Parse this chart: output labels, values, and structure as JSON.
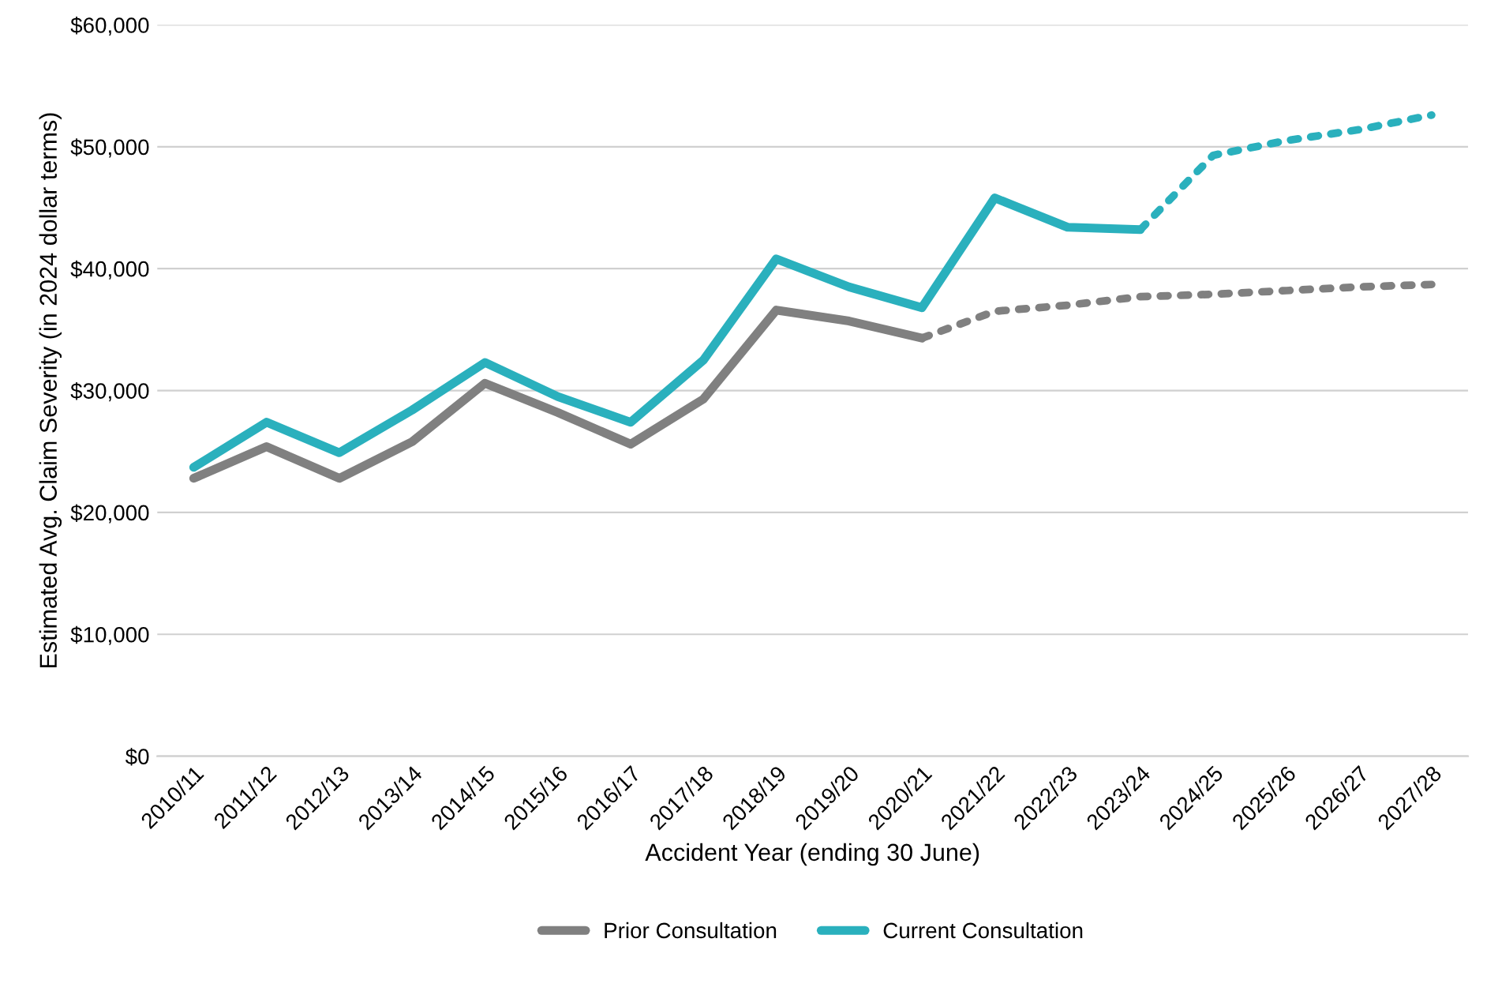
{
  "chart_data": {
    "type": "line",
    "xlabel": "Accident Year (ending 30 June)",
    "ylabel": "Estimated Avg. Claim Severity (in 2024 dollar terms)",
    "categories": [
      "2010/11",
      "2011/12",
      "2012/13",
      "2013/14",
      "2014/15",
      "2015/16",
      "2016/17",
      "2017/18",
      "2018/19",
      "2019/20",
      "2020/21",
      "2021/22",
      "2022/23",
      "2023/24",
      "2024/25",
      "2025/26",
      "2026/27",
      "2027/28"
    ],
    "series": [
      {
        "name": "Prior Consultation",
        "color": "#808080",
        "line_style": "solid",
        "values": [
          22800,
          25400,
          22800,
          25800,
          30600,
          28200,
          25600,
          29300,
          36600,
          35700,
          34300,
          null,
          null,
          null,
          null,
          null,
          null,
          null
        ]
      },
      {
        "color": "#808080",
        "line_style": "dotted",
        "values": [
          null,
          null,
          null,
          null,
          null,
          null,
          null,
          null,
          null,
          null,
          34300,
          36500,
          37000,
          37700,
          37900,
          38200,
          38500,
          38700
        ]
      },
      {
        "name": "Current Consultation",
        "color": "#2ab0bd",
        "line_style": "solid",
        "values": [
          23700,
          27400,
          24900,
          28400,
          32300,
          29500,
          27400,
          32500,
          40800,
          38500,
          36800,
          45800,
          43400,
          43200,
          null,
          null,
          null,
          null
        ]
      },
      {
        "color": "#2ab0bd",
        "line_style": "dotted",
        "values": [
          null,
          null,
          null,
          null,
          null,
          null,
          null,
          null,
          null,
          null,
          null,
          null,
          null,
          43200,
          49300,
          50500,
          51400,
          52600
        ]
      }
    ],
    "ylim": [
      0,
      60000
    ],
    "yticks": [
      {
        "value": 0,
        "label": "$0"
      },
      {
        "value": 10000,
        "label": "$10,000"
      },
      {
        "value": 20000,
        "label": "$20,000"
      },
      {
        "value": 30000,
        "label": "$30,000"
      },
      {
        "value": 40000,
        "label": "$40,000"
      },
      {
        "value": 50000,
        "label": "$50,000"
      },
      {
        "value": 60000,
        "label": "$60,000"
      }
    ],
    "grid": "y",
    "legend": "bottom",
    "marker": "none"
  }
}
